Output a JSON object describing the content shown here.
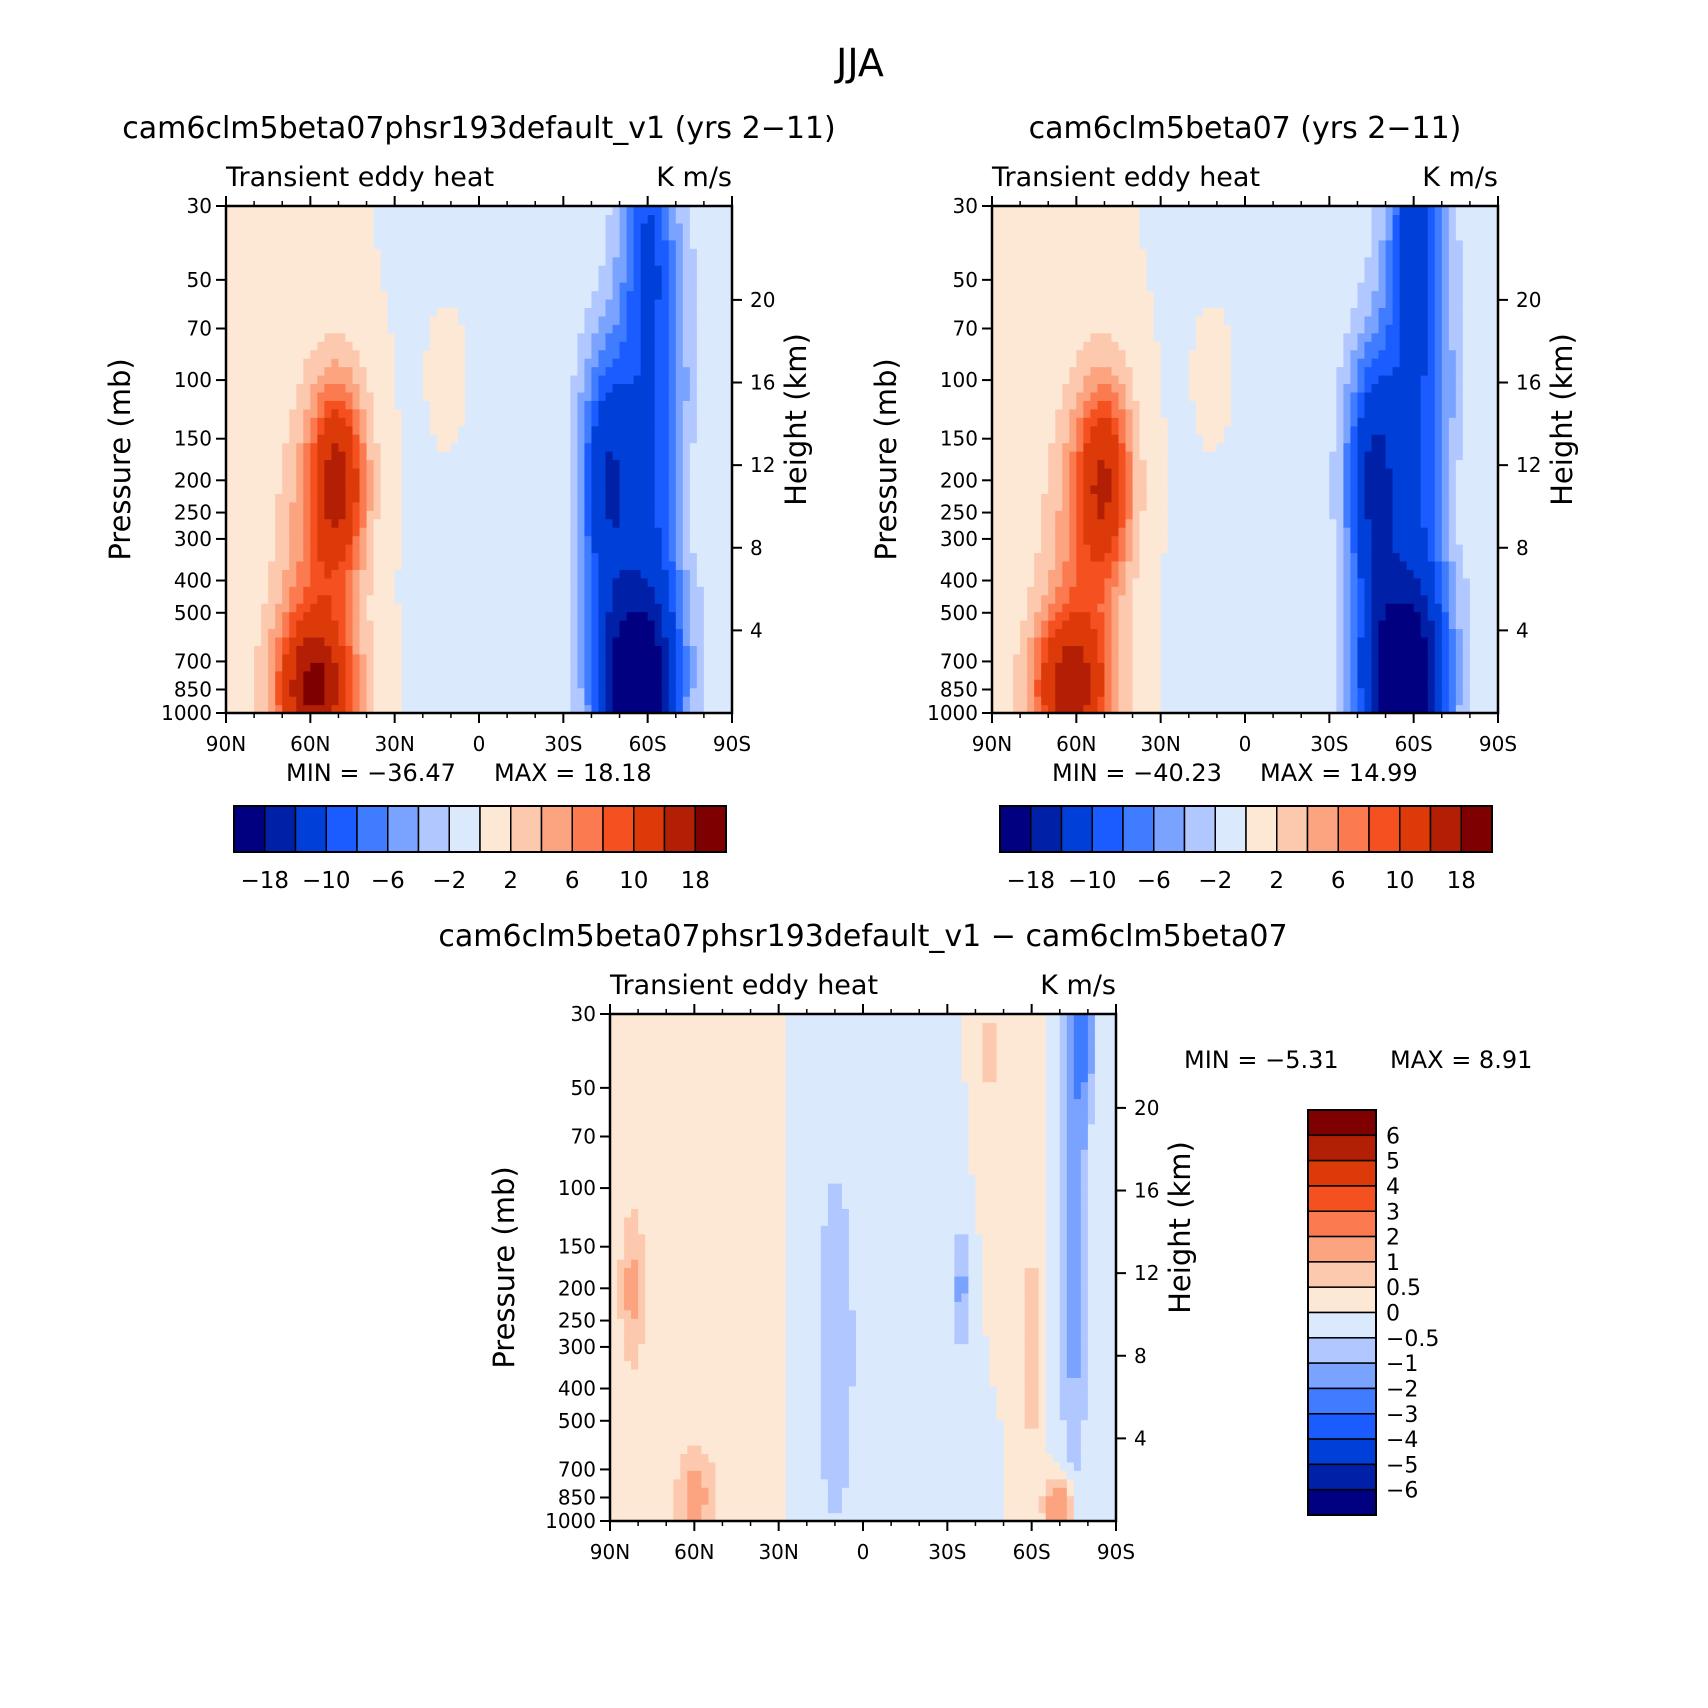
{
  "figure": {
    "title": "JJA",
    "colors": {
      "axis": "#000000",
      "background": "#ffffff"
    }
  },
  "chart_data": [
    {
      "type": "heatmap",
      "id": "test",
      "title": "cam6clm5beta07phsr193default_v1 (yrs 2−11)",
      "field_label": "Transient eddy heat",
      "units": "K m/s",
      "ylabel": "Pressure (mb)",
      "y2label": "Height (km)",
      "x_ticks": [
        "90N",
        "60N",
        "30N",
        "0",
        "30S",
        "60S",
        "90S"
      ],
      "y_ticks": [
        "30",
        "50",
        "70",
        "100",
        "150",
        "200",
        "250",
        "300",
        "400",
        "500",
        "700",
        "850",
        "1000"
      ],
      "y2_ticks": [
        "4",
        "8",
        "12",
        "16",
        "20"
      ],
      "ylim": [
        1000,
        30
      ],
      "xlim": [
        90,
        -90
      ],
      "log_pressure_axis": true,
      "min_label": "MIN = −36.47",
      "max_label": "MAX = 18.18",
      "min": -36.47,
      "max": 18.18,
      "levels": [
        -18,
        -14,
        -10,
        -8,
        -6,
        -4,
        -2,
        0,
        2,
        4,
        6,
        8,
        10,
        14,
        18
      ],
      "colorbar_labels": [
        "−18",
        "−10",
        "−6",
        "−2",
        "2",
        "6",
        "10",
        "18"
      ],
      "features": [
        {
          "lat": 50,
          "p": 200,
          "amp": 14,
          "dlat": 10,
          "dlp": 0.3
        },
        {
          "lat": 58,
          "p": 850,
          "amp": 15,
          "dlat": 14,
          "dlp": 0.22
        },
        {
          "lat": 60,
          "p": 500,
          "amp": 5,
          "dlat": 14,
          "dlp": 0.6
        },
        {
          "lat": 10,
          "p": 100,
          "amp": 2.5,
          "dlat": 7,
          "dlp": 0.22
        },
        {
          "lat": -62,
          "p": 200,
          "amp": -9,
          "dlat": 14,
          "dlp": 0.9
        },
        {
          "lat": -45,
          "p": 200,
          "amp": -12,
          "dlat": 10,
          "dlp": 0.4
        },
        {
          "lat": -55,
          "p": 850,
          "amp": -20,
          "dlat": 14,
          "dlp": 0.3
        },
        {
          "lat": -60,
          "p": 35,
          "amp": -6,
          "dlat": 9,
          "dlp": 0.4
        },
        {
          "lat": -75,
          "p": 230,
          "amp": 2.5,
          "dlat": 5,
          "dlp": 0.2
        },
        {
          "lat": 0,
          "p": 300,
          "amp": -1.5,
          "dlat": 18,
          "dlp": 1.5
        }
      ]
    },
    {
      "type": "heatmap",
      "id": "control",
      "title": "cam6clm5beta07 (yrs 2−11)",
      "field_label": "Transient eddy heat",
      "units": "K m/s",
      "ylabel": "Pressure (mb)",
      "y2label": "Height (km)",
      "x_ticks": [
        "90N",
        "60N",
        "30N",
        "0",
        "30S",
        "60S",
        "90S"
      ],
      "y_ticks": [
        "30",
        "50",
        "70",
        "100",
        "150",
        "200",
        "250",
        "300",
        "400",
        "500",
        "700",
        "850",
        "1000"
      ],
      "y2_ticks": [
        "4",
        "8",
        "12",
        "16",
        "20"
      ],
      "ylim": [
        1000,
        30
      ],
      "xlim": [
        90,
        -90
      ],
      "log_pressure_axis": true,
      "min_label": "MIN = −40.23",
      "max_label": "MAX = 14.99",
      "min": -40.23,
      "max": 14.99,
      "levels": [
        -18,
        -14,
        -10,
        -8,
        -6,
        -4,
        -2,
        0,
        2,
        4,
        6,
        8,
        10,
        14,
        18
      ],
      "colorbar_labels": [
        "−18",
        "−10",
        "−6",
        "−2",
        "2",
        "6",
        "10",
        "18"
      ],
      "features": [
        {
          "lat": 50,
          "p": 200,
          "amp": 13,
          "dlat": 10,
          "dlp": 0.3
        },
        {
          "lat": 62,
          "p": 850,
          "amp": 13,
          "dlat": 14,
          "dlp": 0.22
        },
        {
          "lat": 60,
          "p": 500,
          "amp": 5,
          "dlat": 14,
          "dlp": 0.6
        },
        {
          "lat": 10,
          "p": 100,
          "amp": 2.5,
          "dlat": 7,
          "dlp": 0.22
        },
        {
          "lat": -62,
          "p": 200,
          "amp": -9,
          "dlat": 14,
          "dlp": 0.9
        },
        {
          "lat": -45,
          "p": 200,
          "amp": -13,
          "dlat": 10,
          "dlp": 0.4
        },
        {
          "lat": -55,
          "p": 850,
          "amp": -22,
          "dlat": 14,
          "dlp": 0.3
        },
        {
          "lat": -60,
          "p": 35,
          "amp": -8,
          "dlat": 9,
          "dlp": 0.4
        },
        {
          "lat": -75,
          "p": 230,
          "amp": 2,
          "dlat": 5,
          "dlp": 0.2
        },
        {
          "lat": 0,
          "p": 300,
          "amp": -1.5,
          "dlat": 18,
          "dlp": 1.5
        }
      ]
    },
    {
      "type": "heatmap",
      "id": "difference",
      "title": "cam6clm5beta07phsr193default_v1 − cam6clm5beta07",
      "field_label": "Transient eddy heat",
      "units": "K m/s",
      "ylabel": "Pressure (mb)",
      "y2label": "Height (km)",
      "x_ticks": [
        "90N",
        "60N",
        "30N",
        "0",
        "30S",
        "60S",
        "90S"
      ],
      "y_ticks": [
        "30",
        "50",
        "70",
        "100",
        "150",
        "200",
        "250",
        "300",
        "400",
        "500",
        "700",
        "850",
        "1000"
      ],
      "y2_ticks": [
        "4",
        "8",
        "12",
        "16",
        "20"
      ],
      "ylim": [
        1000,
        30
      ],
      "xlim": [
        90,
        -90
      ],
      "log_pressure_axis": true,
      "min_label": "MIN = −5.31",
      "max_label": "MAX = 8.91",
      "min": -5.31,
      "max": 8.91,
      "levels": [
        -6,
        -5,
        -4,
        -3,
        -2,
        -1,
        -0.5,
        0,
        0.5,
        1,
        2,
        3,
        4,
        5,
        6
      ],
      "colorbar_labels": [
        "6",
        "5",
        "4",
        "3",
        "2",
        "1",
        "0.5",
        "0",
        "−0.5",
        "−1",
        "−2",
        "−3",
        "−4",
        "−5",
        "−6"
      ],
      "features": [
        {
          "lat": 82,
          "p": 200,
          "amp": 1.2,
          "dlat": 5,
          "dlp": 0.25
        },
        {
          "lat": 60,
          "p": 850,
          "amp": 1.3,
          "dlat": 7,
          "dlp": 0.15
        },
        {
          "lat": 40,
          "p": 200,
          "amp": 0.4,
          "dlat": 14,
          "dlp": 1.0
        },
        {
          "lat": -35,
          "p": 200,
          "amp": -1.2,
          "dlat": 3,
          "dlp": 0.2
        },
        {
          "lat": -75,
          "p": 100,
          "amp": -1.6,
          "dlat": 5,
          "dlp": 0.9
        },
        {
          "lat": -78,
          "p": 35,
          "amp": -2.0,
          "dlat": 4,
          "dlp": 0.2
        },
        {
          "lat": -70,
          "p": 900,
          "amp": 2.2,
          "dlat": 5,
          "dlp": 0.08
        },
        {
          "lat": -45,
          "p": 40,
          "amp": 0.6,
          "dlat": 4,
          "dlp": 0.3
        },
        {
          "lat": 10,
          "p": 300,
          "amp": -0.6,
          "dlat": 15,
          "dlp": 1.2
        },
        {
          "lat": -20,
          "p": 200,
          "amp": -0.4,
          "dlat": 8,
          "dlp": 1.0
        },
        {
          "lat": -60,
          "p": 300,
          "amp": 0.7,
          "dlat": 3,
          "dlp": 0.6
        }
      ]
    }
  ],
  "palette": [
    "#000080",
    "#0020a8",
    "#0040d8",
    "#1a5cff",
    "#3f7cff",
    "#7aa2ff",
    "#b0c8ff",
    "#dbe9fd",
    "#fde8d6",
    "#fcc9ae",
    "#fca37f",
    "#fb7a4f",
    "#f55020",
    "#dc3a08",
    "#b31f05",
    "#7f0000"
  ]
}
